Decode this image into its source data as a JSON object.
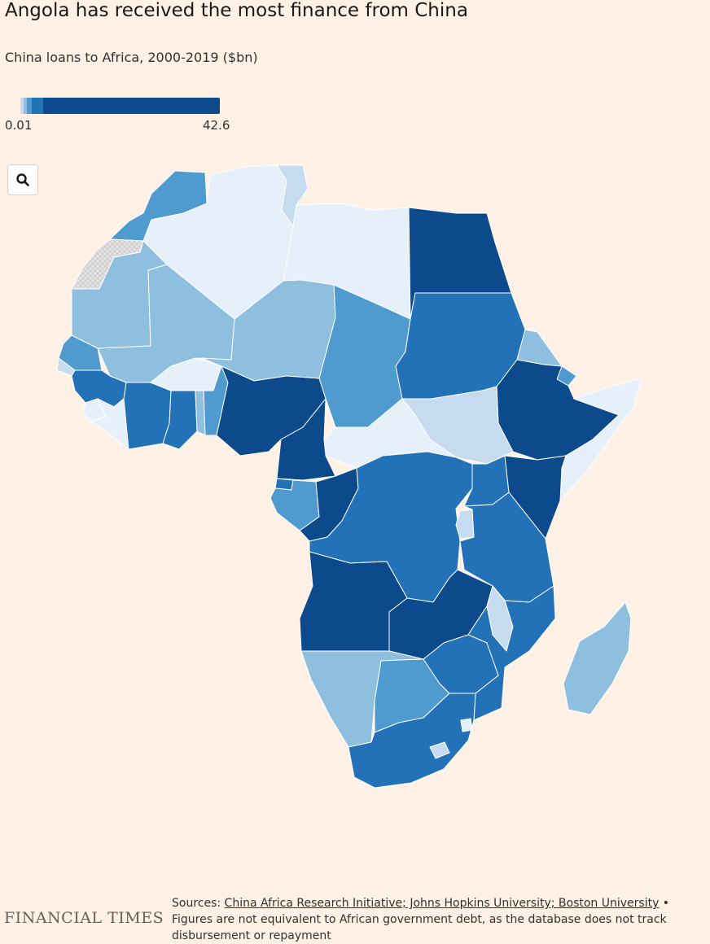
{
  "title": "Angola has received the most finance from China",
  "subtitle": "China loans to Africa, 2000-2019 ($bn)",
  "legend": {
    "min_label": "0.01",
    "max_label": "42.6",
    "colors": [
      "#c6dbef",
      "#8fbfde",
      "#4f9bd0",
      "#2372b8",
      "#0c4a8c"
    ],
    "breaks": [
      0.01,
      1,
      2,
      5,
      10,
      42.6
    ]
  },
  "zoom": {
    "icon": "search-icon"
  },
  "map": {
    "colors": {
      "none": "#e6f0fa",
      "class1": "#c6dbef",
      "class2": "#8fbfde",
      "class3": "#4f9bd0",
      "class4": "#2372b8",
      "class5": "#0c4a8c",
      "disputed": "#dcdcdc"
    },
    "countries": [
      {
        "name": "Morocco",
        "class": "class3"
      },
      {
        "name": "Western Sahara",
        "class": "disputed"
      },
      {
        "name": "Algeria",
        "class": "none"
      },
      {
        "name": "Tunisia",
        "class": "class1"
      },
      {
        "name": "Libya",
        "class": "none"
      },
      {
        "name": "Egypt",
        "class": "class5"
      },
      {
        "name": "Mauritania",
        "class": "class2"
      },
      {
        "name": "Mali",
        "class": "class2"
      },
      {
        "name": "Niger",
        "class": "class2"
      },
      {
        "name": "Chad",
        "class": "class3"
      },
      {
        "name": "Sudan",
        "class": "class4"
      },
      {
        "name": "Eritrea",
        "class": "class2"
      },
      {
        "name": "Djibouti",
        "class": "class3"
      },
      {
        "name": "Ethiopia",
        "class": "class5"
      },
      {
        "name": "Somalia",
        "class": "none"
      },
      {
        "name": "South Sudan",
        "class": "class1"
      },
      {
        "name": "Central African Republic",
        "class": "none"
      },
      {
        "name": "Senegal",
        "class": "class3"
      },
      {
        "name": "Guinea-Bissau",
        "class": "class1"
      },
      {
        "name": "Guinea",
        "class": "class4"
      },
      {
        "name": "Sierra Leone",
        "class": "none"
      },
      {
        "name": "Liberia",
        "class": "none"
      },
      {
        "name": "Cote d'Ivoire",
        "class": "class4"
      },
      {
        "name": "Burkina Faso",
        "class": "none"
      },
      {
        "name": "Ghana",
        "class": "class4"
      },
      {
        "name": "Togo",
        "class": "class2"
      },
      {
        "name": "Benin",
        "class": "class3"
      },
      {
        "name": "Nigeria",
        "class": "class5"
      },
      {
        "name": "Cameroon",
        "class": "class5"
      },
      {
        "name": "Equatorial Guinea",
        "class": "class4"
      },
      {
        "name": "Gabon",
        "class": "class3"
      },
      {
        "name": "Republic of Congo",
        "class": "class5"
      },
      {
        "name": "DR Congo",
        "class": "class4"
      },
      {
        "name": "Uganda",
        "class": "class4"
      },
      {
        "name": "Kenya",
        "class": "class5"
      },
      {
        "name": "Rwanda",
        "class": "class1"
      },
      {
        "name": "Tanzania",
        "class": "class4"
      },
      {
        "name": "Angola",
        "class": "class5"
      },
      {
        "name": "Zambia",
        "class": "class5"
      },
      {
        "name": "Malawi",
        "class": "class1"
      },
      {
        "name": "Mozambique",
        "class": "class4"
      },
      {
        "name": "Namibia",
        "class": "class2"
      },
      {
        "name": "Botswana",
        "class": "class3"
      },
      {
        "name": "Zimbabwe",
        "class": "class4"
      },
      {
        "name": "South Africa",
        "class": "class4"
      },
      {
        "name": "Lesotho",
        "class": "class1"
      },
      {
        "name": "Eswatini",
        "class": "none"
      },
      {
        "name": "Madagascar",
        "class": "class2"
      }
    ]
  },
  "footer": {
    "logo": "FINANCIAL TIMES",
    "sources_prefix": "Sources: ",
    "sources_link": "China Africa Research Initiative; Johns Hopkins University; Boston University",
    "note": " • Figures are not equivalent to African government debt, as the database does not track disbursement or repayment"
  }
}
